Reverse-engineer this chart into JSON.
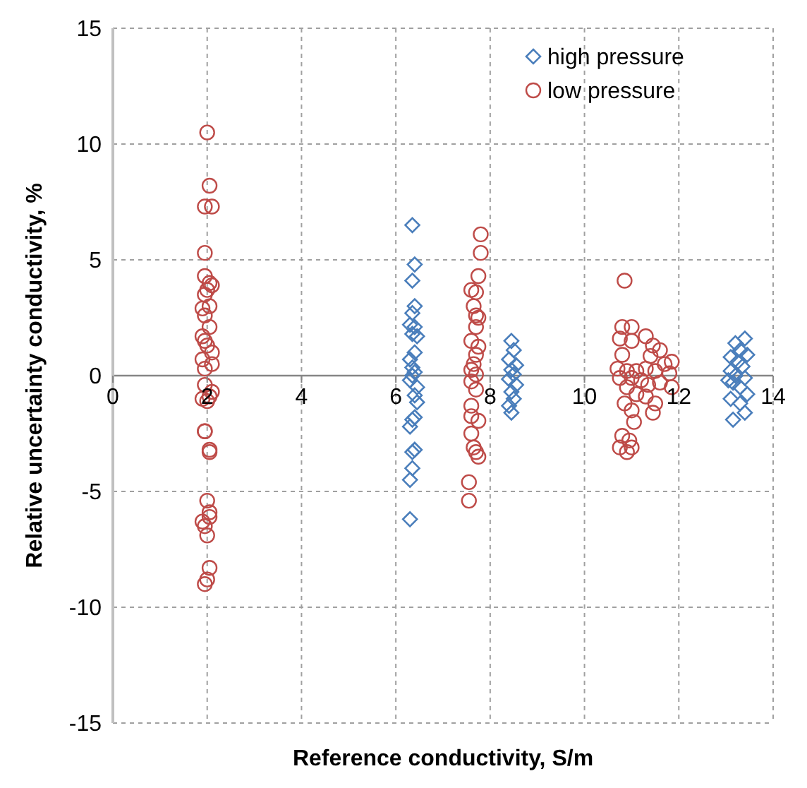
{
  "chart_data": {
    "type": "scatter",
    "xlabel": "Reference conductivity, S/m",
    "ylabel": "Relative uncertainty conductivity, %",
    "xlim": [
      0,
      14
    ],
    "xticks": [
      0,
      2,
      4,
      6,
      8,
      10,
      12,
      14
    ],
    "ylim": [
      -15,
      15
    ],
    "yticks": [
      -15,
      -10,
      -5,
      0,
      5,
      10,
      15
    ],
    "grid": true,
    "legend": "top right",
    "series": [
      {
        "name": "high pressure",
        "color": "#4a7ebb",
        "marker": "diamond",
        "x": [
          6.35,
          6.4,
          6.35,
          6.4,
          6.35,
          6.3,
          6.4,
          6.35,
          6.45,
          6.4,
          6.3,
          6.35,
          6.4,
          6.35,
          6.3,
          6.45,
          6.4,
          6.45,
          6.4,
          6.35,
          6.3,
          6.4,
          6.35,
          6.35,
          6.3,
          6.3,
          8.45,
          8.5,
          8.4,
          8.55,
          8.45,
          8.5,
          8.4,
          8.55,
          8.45,
          8.5,
          8.4,
          8.45,
          13.4,
          13.2,
          13.3,
          13.45,
          13.1,
          13.25,
          13.35,
          13.1,
          13.2,
          13.4,
          13.15,
          13.3,
          13.45,
          13.1,
          13.3,
          13.4,
          13.15,
          13.05
        ],
        "values": [
          6.5,
          4.8,
          4.1,
          3.0,
          2.7,
          2.2,
          2.1,
          1.8,
          1.7,
          1.0,
          0.7,
          0.35,
          0.15,
          0,
          -0.2,
          -0.5,
          -0.85,
          -1.15,
          -1.8,
          -1.9,
          -2.2,
          -3.2,
          -3.3,
          -4.0,
          -4.5,
          -6.2,
          1.5,
          1.1,
          0.7,
          0.45,
          0.25,
          0.05,
          -0.15,
          -0.4,
          -0.7,
          -1.0,
          -1.3,
          -1.6,
          1.6,
          1.4,
          1.1,
          0.9,
          0.8,
          0.6,
          0.4,
          0.2,
          0,
          -0.1,
          -0.3,
          -0.5,
          -0.8,
          -1.0,
          -1.2,
          -1.6,
          -1.9,
          -0.2
        ]
      },
      {
        "name": "low pressure",
        "color": "#be4b48",
        "marker": "circle",
        "x": [
          2.0,
          2.05,
          1.95,
          2.1,
          1.95,
          1.95,
          2.1,
          2.05,
          2.0,
          1.95,
          2.05,
          1.9,
          1.95,
          2.05,
          1.9,
          1.95,
          2.0,
          2.1,
          1.9,
          2.1,
          1.95,
          1.95,
          2.1,
          2.05,
          1.9,
          2.0,
          1.95,
          1.95,
          2.05,
          2.05,
          2.0,
          2.05,
          2.05,
          1.9,
          1.95,
          2.0,
          2.05,
          2.0,
          1.95,
          7.8,
          7.8,
          7.75,
          7.6,
          7.7,
          7.65,
          7.7,
          7.75,
          7.7,
          7.6,
          7.75,
          7.7,
          7.65,
          7.6,
          7.7,
          7.6,
          7.7,
          7.6,
          7.6,
          7.75,
          7.6,
          7.65,
          7.7,
          7.75,
          7.55,
          7.55,
          10.85,
          10.8,
          11.0,
          11.3,
          10.75,
          11.0,
          11.45,
          11.6,
          10.8,
          11.4,
          11.7,
          11.85,
          10.7,
          10.9,
          11.1,
          11.3,
          11.5,
          11.8,
          10.75,
          11.0,
          11.2,
          11.35,
          11.6,
          11.85,
          10.9,
          11.1,
          11.3,
          11.5,
          11.45,
          10.85,
          11.0,
          11.05,
          10.8,
          10.95,
          10.75,
          11.0,
          10.9
        ],
        "values": [
          10.5,
          8.2,
          7.3,
          7.3,
          5.3,
          4.3,
          3.9,
          4.0,
          3.7,
          3.5,
          3.0,
          2.9,
          2.6,
          2.1,
          1.7,
          1.5,
          1.3,
          1.0,
          0.7,
          0.5,
          0.3,
          -0.4,
          -0.7,
          -0.9,
          -1.0,
          -1.1,
          -2.4,
          -2.4,
          -3.2,
          -3.3,
          -5.4,
          -5.9,
          -6.1,
          -6.3,
          -6.5,
          -6.9,
          -8.3,
          -8.8,
          -9.0,
          6.1,
          5.3,
          4.3,
          3.7,
          3.6,
          3.0,
          2.6,
          2.5,
          2.1,
          1.5,
          1.25,
          0.9,
          0.5,
          0.25,
          0.05,
          -0.25,
          -0.6,
          -1.3,
          -1.75,
          -1.95,
          -2.5,
          -3.1,
          -3.3,
          -3.5,
          -4.6,
          -5.4,
          4.1,
          2.1,
          2.1,
          1.7,
          1.6,
          1.5,
          1.3,
          1.1,
          0.9,
          0.85,
          0.5,
          0.6,
          0.3,
          0.2,
          0.2,
          0.3,
          0.2,
          0.1,
          -0.1,
          -0.1,
          -0.2,
          -0.4,
          -0.3,
          -0.5,
          -0.5,
          -0.8,
          -0.9,
          -1.2,
          -1.6,
          -1.2,
          -1.5,
          -2.0,
          -2.6,
          -2.8,
          -3.1,
          -3.1,
          -3.3
        ]
      }
    ]
  }
}
